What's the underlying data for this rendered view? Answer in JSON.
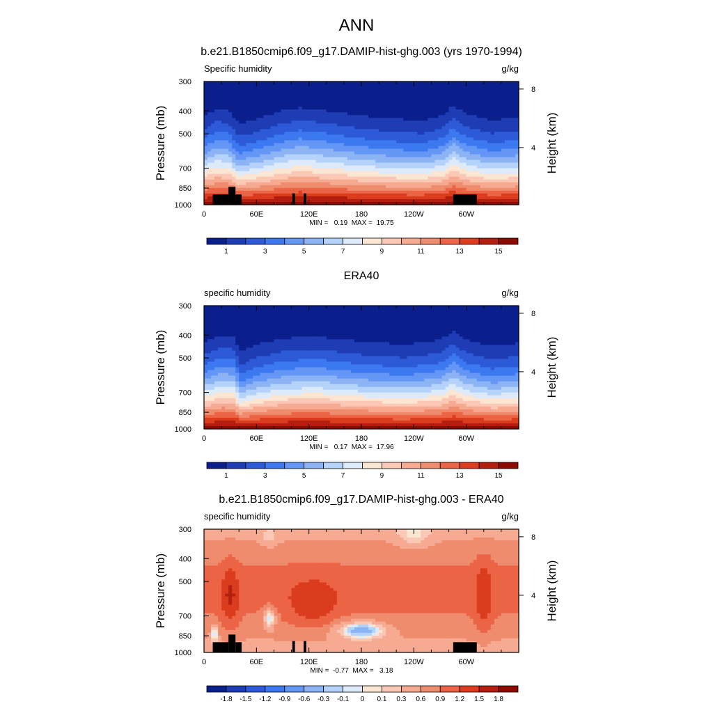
{
  "figure": {
    "title": "ANN"
  },
  "chart_data": [
    {
      "type": "heatmap",
      "panel_title": "b.e21.B1850cmip6.f09_g17.DAMIP-hist-ghg.003 (yrs 1970-1994)",
      "left_label": "Specific humidity",
      "right_label": "g/kg",
      "ylabel": "Pressure (mb)",
      "y2label": "Height (km)",
      "x_ticks": [
        "0",
        "60E",
        "120E",
        "180",
        "120W",
        "60W"
      ],
      "y_ticks": [
        "300",
        "400",
        "500",
        "700",
        "850",
        "1000"
      ],
      "y2_ticks": [
        "8",
        "4"
      ],
      "xlim": [
        0,
        360
      ],
      "ylim": [
        1000,
        300
      ],
      "stats": "MIN =   0.19  MAX =  19.75",
      "min": 0.19,
      "max": 19.75,
      "colorbar_labels": [
        "1",
        "3",
        "5",
        "7",
        "9",
        "11",
        "13",
        "15"
      ],
      "colorbar_colors": [
        "#0a1f8c",
        "#1e3cb4",
        "#2d5ad7",
        "#3c78f0",
        "#6496f5",
        "#8cb4f5",
        "#b4d2fa",
        "#dceafa",
        "#fae6d2",
        "#fac8b4",
        "#f5aa91",
        "#f08c6e",
        "#eb6446",
        "#dc3c1e",
        "#b41e0f",
        "#8c0a00"
      ],
      "terrain": true
    },
    {
      "type": "heatmap",
      "panel_title": "ERA40",
      "left_label": "specific humidity",
      "right_label": "g/kg",
      "ylabel": "Pressure (mb)",
      "y2label": "Height (km)",
      "x_ticks": [
        "0",
        "60E",
        "120E",
        "180",
        "120W",
        "60W"
      ],
      "y_ticks": [
        "300",
        "400",
        "500",
        "700",
        "850",
        "1000"
      ],
      "y2_ticks": [
        "8",
        "4"
      ],
      "xlim": [
        0,
        360
      ],
      "ylim": [
        1000,
        300
      ],
      "stats": "MIN =   0.17  MAX =  17.96",
      "min": 0.17,
      "max": 17.96,
      "colorbar_labels": [
        "1",
        "3",
        "5",
        "7",
        "9",
        "11",
        "13",
        "15"
      ],
      "colorbar_colors": [
        "#0a1f8c",
        "#1e3cb4",
        "#2d5ad7",
        "#3c78f0",
        "#6496f5",
        "#8cb4f5",
        "#b4d2fa",
        "#dceafa",
        "#fae6d2",
        "#fac8b4",
        "#f5aa91",
        "#f08c6e",
        "#eb6446",
        "#dc3c1e",
        "#b41e0f",
        "#8c0a00"
      ],
      "terrain": false
    },
    {
      "type": "heatmap",
      "panel_title": "b.e21.B1850cmip6.f09_g17.DAMIP-hist-ghg.003 - ERA40",
      "left_label": "specific humidity",
      "right_label": "g/kg",
      "ylabel": "Pressure (mb)",
      "y2label": "Height (km)",
      "x_ticks": [
        "0",
        "60E",
        "120E",
        "180",
        "120W",
        "60W"
      ],
      "y_ticks": [
        "300",
        "400",
        "500",
        "700",
        "850",
        "1000"
      ],
      "y2_ticks": [
        "8",
        "4"
      ],
      "xlim": [
        0,
        360
      ],
      "ylim": [
        1000,
        300
      ],
      "stats": "MIN =  -0.77  MAX =   3.18",
      "min": -0.77,
      "max": 3.18,
      "colorbar_labels": [
        "-1.8",
        "-1.5",
        "-1.2",
        "-0.9",
        "-0.6",
        "-0.3",
        "-0.1",
        "0",
        "0.1",
        "0.3",
        "0.6",
        "0.9",
        "1.2",
        "1.5",
        "1.8"
      ],
      "colorbar_colors": [
        "#0a1f8c",
        "#1e3cb4",
        "#2d5ad7",
        "#3c78f0",
        "#6496f5",
        "#8cb4f5",
        "#b4d2fa",
        "#dceafa",
        "#fae6d2",
        "#fac8b4",
        "#f5aa91",
        "#f08c6e",
        "#eb6446",
        "#dc3c1e",
        "#b41e0f",
        "#8c0a00"
      ],
      "terrain": true
    }
  ]
}
